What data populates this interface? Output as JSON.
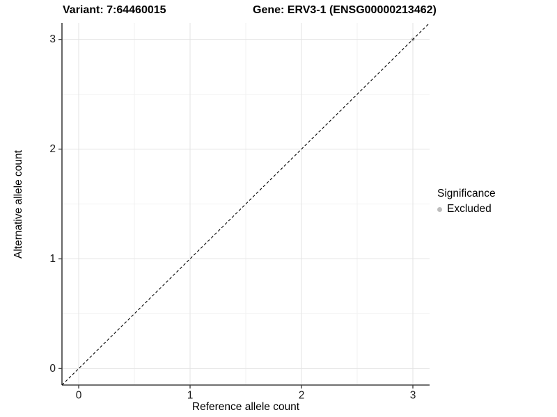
{
  "titles": {
    "variant": "Variant: 7:64460015",
    "gene": "Gene: ERV3-1 (ENSG00000213462)"
  },
  "chart_data": {
    "type": "scatter",
    "xlabel": "Reference allele count",
    "ylabel": "Alternative allele count",
    "xlim": [
      -0.15,
      3.15
    ],
    "ylim": [
      -0.15,
      3.15
    ],
    "x_ticks": [
      0,
      1,
      2,
      3
    ],
    "y_ticks": [
      0,
      1,
      2,
      3
    ],
    "x_minor_ticks": [
      0.5,
      1.5,
      2.5
    ],
    "y_minor_ticks": [
      0.5,
      1.5,
      2.5
    ],
    "grid": "on",
    "points": [
      {
        "x": 3,
        "y": 3,
        "series": "Excluded"
      }
    ],
    "series": [
      {
        "name": "Excluded",
        "color": "#bdbdbd"
      }
    ],
    "reference_line": {
      "kind": "identity",
      "slope": 1,
      "intercept": 0,
      "style": "dashed",
      "color": "#000000"
    },
    "legend": {
      "title": "Significance",
      "position": "right"
    },
    "colors": {
      "point": "#bdbdbd",
      "grid_major": "#e3e3e3",
      "grid_minor": "#f1f1f1",
      "axis_line": "#404040",
      "tick_text": "#1a1a1a"
    }
  }
}
